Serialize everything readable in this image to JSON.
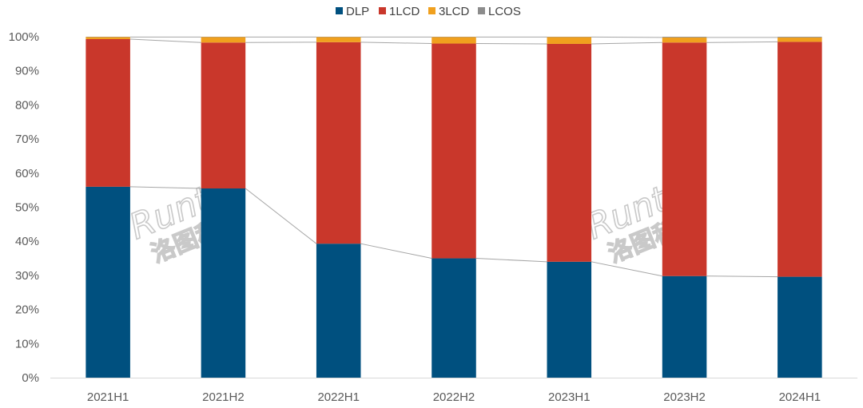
{
  "chart_data": {
    "type": "bar",
    "stacked": true,
    "categories": [
      "2021H1",
      "2021H2",
      "2022H1",
      "2022H2",
      "2023H1",
      "2023H2",
      "2024H1"
    ],
    "series": [
      {
        "name": "DLP",
        "color": "#00507f",
        "values": [
          56.0,
          55.5,
          39.3,
          35.0,
          34.0,
          29.8,
          29.6
        ]
      },
      {
        "name": "1LCD",
        "color": "#c9372b",
        "values": [
          43.3,
          42.8,
          59.1,
          63.0,
          63.9,
          68.5,
          68.9
        ]
      },
      {
        "name": "3LCD",
        "color": "#f0a01e",
        "values": [
          0.6,
          1.6,
          1.5,
          1.9,
          2.0,
          1.5,
          1.3
        ]
      },
      {
        "name": "LCOS",
        "color": "#8c8c8c",
        "values": [
          0.1,
          0.1,
          0.1,
          0.1,
          0.1,
          0.2,
          0.2
        ]
      }
    ],
    "ylim": [
      0,
      100
    ],
    "yticks": [
      "0%",
      "10%",
      "20%",
      "30%",
      "40%",
      "50%",
      "60%",
      "70%",
      "80%",
      "90%",
      "100%"
    ],
    "legend_position": "top",
    "series_lines": true,
    "grid": false
  },
  "watermark": {
    "latin": "Runto",
    "cjk": "洛图科技"
  }
}
